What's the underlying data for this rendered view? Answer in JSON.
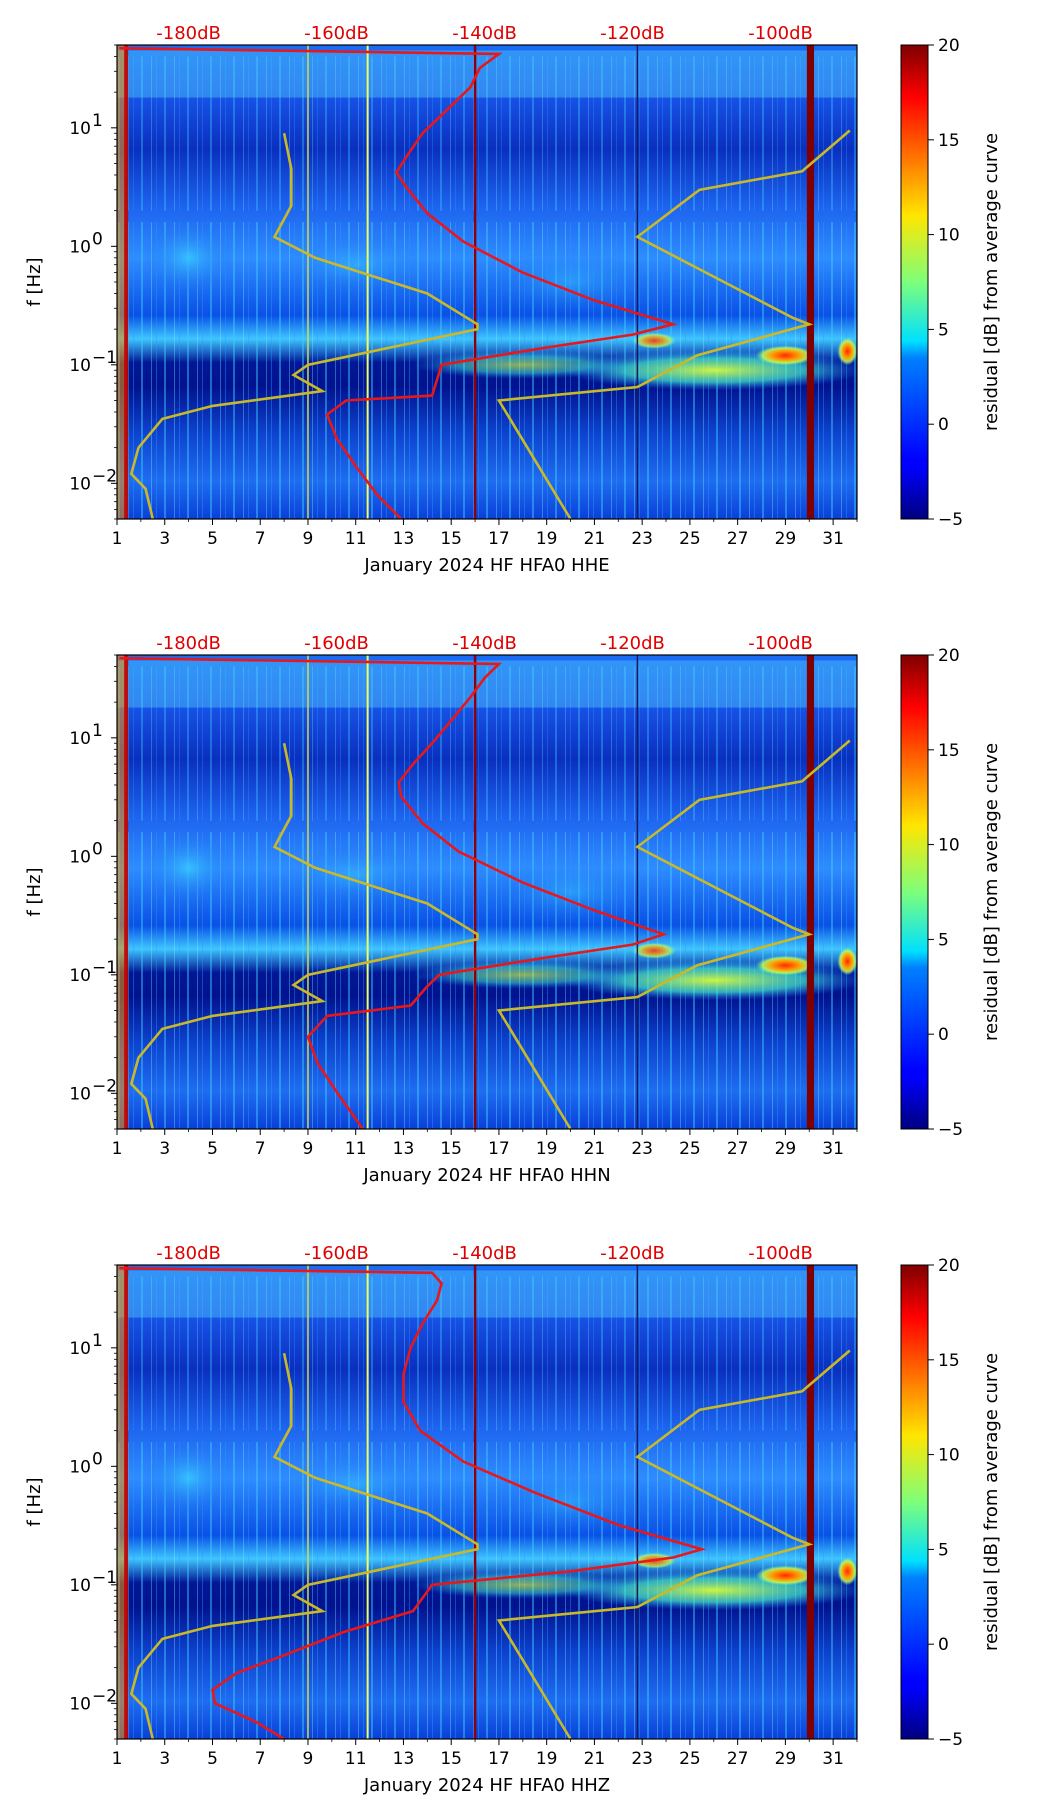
{
  "chart_data": [
    {
      "type": "heatmap",
      "xlabel": "January 2024 HF HFA0  HHE",
      "ylabel": "f [Hz]",
      "x_ticks": [
        "1",
        "3",
        "5",
        "7",
        "9",
        "11",
        "13",
        "15",
        "17",
        "19",
        "21",
        "23",
        "25",
        "27",
        "29",
        "31"
      ],
      "x_range": [
        1,
        32
      ],
      "y_range": [
        0.005,
        50
      ],
      "y_scale": "log",
      "y_ticks": [
        {
          "value": 0.01,
          "base": "10",
          "exp": "−2"
        },
        {
          "value": 0.1,
          "base": "10",
          "exp": "−1"
        },
        {
          "value": 1,
          "base": "10",
          "exp": "0"
        },
        {
          "value": 10,
          "base": "10",
          "exp": "1"
        }
      ],
      "db_labels": [
        "-180dB",
        "-160dB",
        "-140dB",
        "-120dB",
        "-100dB"
      ],
      "db_label_days": [
        4.0,
        10.2,
        16.4,
        22.6,
        28.8
      ],
      "colorbar": {
        "label": "residual [dB] from average curve",
        "min": -5,
        "max": 20,
        "ticks": [
          "−5",
          "0",
          "5",
          "10",
          "15",
          "20"
        ]
      },
      "dark_red_days": [
        29.9,
        30.2
      ],
      "red_curve": [
        {
          "day": 12.9,
          "f": 0.005
        },
        {
          "day": 11.9,
          "f": 0.008
        },
        {
          "day": 11.0,
          "f": 0.014
        },
        {
          "day": 10.2,
          "f": 0.024
        },
        {
          "day": 9.8,
          "f": 0.038
        },
        {
          "day": 10.6,
          "f": 0.05
        },
        {
          "day": 14.2,
          "f": 0.055
        },
        {
          "day": 14.6,
          "f": 0.1
        },
        {
          "day": 19.0,
          "f": 0.14
        },
        {
          "day": 22.6,
          "f": 0.18
        },
        {
          "day": 24.3,
          "f": 0.22
        },
        {
          "day": 21.0,
          "f": 0.35
        },
        {
          "day": 18.0,
          "f": 0.6
        },
        {
          "day": 15.5,
          "f": 1.1
        },
        {
          "day": 14.0,
          "f": 1.9
        },
        {
          "day": 13.1,
          "f": 3.2
        },
        {
          "day": 12.7,
          "f": 4.2
        },
        {
          "day": 13.2,
          "f": 6.0
        },
        {
          "day": 13.8,
          "f": 9.0
        },
        {
          "day": 14.8,
          "f": 14.0
        },
        {
          "day": 15.8,
          "f": 22.0
        },
        {
          "day": 16.2,
          "f": 32.0
        },
        {
          "day": 17.0,
          "f": 42.0
        },
        {
          "day": 1.1,
          "f": 47.0
        }
      ],
      "yellow_curves": [
        [
          {
            "day": 2.5,
            "f": 0.005
          },
          {
            "day": 2.2,
            "f": 0.009
          },
          {
            "day": 1.6,
            "f": 0.012
          },
          {
            "day": 1.9,
            "f": 0.02
          },
          {
            "day": 2.9,
            "f": 0.035
          },
          {
            "day": 5.0,
            "f": 0.045
          },
          {
            "day": 9.6,
            "f": 0.06
          },
          {
            "day": 8.4,
            "f": 0.082
          },
          {
            "day": 9.0,
            "f": 0.1
          },
          {
            "day": 16.1,
            "f": 0.2
          },
          {
            "day": 16.1,
            "f": 0.22
          },
          {
            "day": 14.0,
            "f": 0.4
          },
          {
            "day": 9.3,
            "f": 0.8
          },
          {
            "day": 7.6,
            "f": 1.2
          },
          {
            "day": 8.3,
            "f": 2.2
          },
          {
            "day": 8.3,
            "f": 4.5
          },
          {
            "day": 8.0,
            "f": 9.0
          }
        ],
        [
          {
            "day": 20.0,
            "f": 0.005
          },
          {
            "day": 17.0,
            "f": 0.05
          },
          {
            "day": 22.8,
            "f": 0.065
          },
          {
            "day": 25.3,
            "f": 0.12
          },
          {
            "day": 30.0,
            "f": 0.22
          },
          {
            "day": 29.3,
            "f": 0.25
          },
          {
            "day": 22.8,
            "f": 1.2
          },
          {
            "day": 25.4,
            "f": 3.0
          },
          {
            "day": 29.7,
            "f": 4.3
          },
          {
            "day": 31.7,
            "f": 9.5
          }
        ]
      ]
    },
    {
      "type": "heatmap",
      "xlabel": "January 2024 HF HFA0  HHN",
      "ylabel": "f [Hz]",
      "x_ticks": [
        "1",
        "3",
        "5",
        "7",
        "9",
        "11",
        "13",
        "15",
        "17",
        "19",
        "21",
        "23",
        "25",
        "27",
        "29",
        "31"
      ],
      "x_range": [
        1,
        32
      ],
      "y_range": [
        0.005,
        50
      ],
      "y_scale": "log",
      "y_ticks": [
        {
          "value": 0.01,
          "base": "10",
          "exp": "−2"
        },
        {
          "value": 0.1,
          "base": "10",
          "exp": "−1"
        },
        {
          "value": 1,
          "base": "10",
          "exp": "0"
        },
        {
          "value": 10,
          "base": "10",
          "exp": "1"
        }
      ],
      "db_labels": [
        "-180dB",
        "-160dB",
        "-140dB",
        "-120dB",
        "-100dB"
      ],
      "db_label_days": [
        4.0,
        10.2,
        16.4,
        22.6,
        28.8
      ],
      "colorbar": {
        "label": "residual [dB] from average curve",
        "min": -5,
        "max": 20,
        "ticks": [
          "−5",
          "0",
          "5",
          "10",
          "15",
          "20"
        ]
      },
      "dark_red_days": [
        29.9,
        30.2
      ],
      "red_curve": [
        {
          "day": 11.3,
          "f": 0.005
        },
        {
          "day": 10.4,
          "f": 0.009
        },
        {
          "day": 9.4,
          "f": 0.018
        },
        {
          "day": 9.0,
          "f": 0.03
        },
        {
          "day": 9.8,
          "f": 0.045
        },
        {
          "day": 13.3,
          "f": 0.055
        },
        {
          "day": 14.0,
          "f": 0.08
        },
        {
          "day": 14.5,
          "f": 0.1
        },
        {
          "day": 19.0,
          "f": 0.14
        },
        {
          "day": 22.6,
          "f": 0.18
        },
        {
          "day": 23.9,
          "f": 0.22
        },
        {
          "day": 21.0,
          "f": 0.35
        },
        {
          "day": 18.0,
          "f": 0.6
        },
        {
          "day": 15.3,
          "f": 1.1
        },
        {
          "day": 13.8,
          "f": 1.9
        },
        {
          "day": 12.9,
          "f": 3.2
        },
        {
          "day": 12.8,
          "f": 4.2
        },
        {
          "day": 13.4,
          "f": 6.0
        },
        {
          "day": 14.2,
          "f": 9.0
        },
        {
          "day": 15.0,
          "f": 14.0
        },
        {
          "day": 15.8,
          "f": 22.0
        },
        {
          "day": 16.4,
          "f": 32.0
        },
        {
          "day": 17.0,
          "f": 42.0
        },
        {
          "day": 1.1,
          "f": 47.0
        }
      ],
      "yellow_curves": [
        [
          {
            "day": 2.5,
            "f": 0.005
          },
          {
            "day": 2.2,
            "f": 0.009
          },
          {
            "day": 1.6,
            "f": 0.012
          },
          {
            "day": 1.9,
            "f": 0.02
          },
          {
            "day": 2.9,
            "f": 0.035
          },
          {
            "day": 5.0,
            "f": 0.045
          },
          {
            "day": 9.6,
            "f": 0.06
          },
          {
            "day": 8.4,
            "f": 0.082
          },
          {
            "day": 9.0,
            "f": 0.1
          },
          {
            "day": 16.1,
            "f": 0.2
          },
          {
            "day": 16.1,
            "f": 0.22
          },
          {
            "day": 14.0,
            "f": 0.4
          },
          {
            "day": 9.3,
            "f": 0.8
          },
          {
            "day": 7.6,
            "f": 1.2
          },
          {
            "day": 8.3,
            "f": 2.2
          },
          {
            "day": 8.3,
            "f": 4.5
          },
          {
            "day": 8.0,
            "f": 9.0
          }
        ],
        [
          {
            "day": 20.0,
            "f": 0.005
          },
          {
            "day": 17.0,
            "f": 0.05
          },
          {
            "day": 22.8,
            "f": 0.065
          },
          {
            "day": 25.3,
            "f": 0.12
          },
          {
            "day": 30.0,
            "f": 0.22
          },
          {
            "day": 29.3,
            "f": 0.25
          },
          {
            "day": 22.8,
            "f": 1.2
          },
          {
            "day": 25.4,
            "f": 3.0
          },
          {
            "day": 29.7,
            "f": 4.3
          },
          {
            "day": 31.7,
            "f": 9.5
          }
        ]
      ]
    },
    {
      "type": "heatmap",
      "xlabel": "January 2024 HF HFA0  HHZ",
      "ylabel": "f [Hz]",
      "x_ticks": [
        "1",
        "3",
        "5",
        "7",
        "9",
        "11",
        "13",
        "15",
        "17",
        "19",
        "21",
        "23",
        "25",
        "27",
        "29",
        "31"
      ],
      "x_range": [
        1,
        32
      ],
      "y_range": [
        0.005,
        50
      ],
      "y_scale": "log",
      "y_ticks": [
        {
          "value": 0.01,
          "base": "10",
          "exp": "−2"
        },
        {
          "value": 0.1,
          "base": "10",
          "exp": "−1"
        },
        {
          "value": 1,
          "base": "10",
          "exp": "0"
        },
        {
          "value": 10,
          "base": "10",
          "exp": "1"
        }
      ],
      "db_labels": [
        "-180dB",
        "-160dB",
        "-140dB",
        "-120dB",
        "-100dB"
      ],
      "db_label_days": [
        4.0,
        10.2,
        16.4,
        22.6,
        28.8
      ],
      "colorbar": {
        "label": "residual [dB] from average curve",
        "min": -5,
        "max": 20,
        "ticks": [
          "−5",
          "0",
          "5",
          "10",
          "15",
          "20"
        ]
      },
      "dark_red_days": [
        29.9,
        30.2
      ],
      "red_curve": [
        {
          "day": 8.0,
          "f": 0.005
        },
        {
          "day": 6.8,
          "f": 0.007
        },
        {
          "day": 5.1,
          "f": 0.01
        },
        {
          "day": 5.0,
          "f": 0.013
        },
        {
          "day": 6.0,
          "f": 0.018
        },
        {
          "day": 7.9,
          "f": 0.025
        },
        {
          "day": 10.5,
          "f": 0.04
        },
        {
          "day": 13.4,
          "f": 0.06
        },
        {
          "day": 14.2,
          "f": 0.1
        },
        {
          "day": 20.0,
          "f": 0.13
        },
        {
          "day": 24.3,
          "f": 0.17
        },
        {
          "day": 25.5,
          "f": 0.2
        },
        {
          "day": 22.0,
          "f": 0.32
        },
        {
          "day": 18.5,
          "f": 0.6
        },
        {
          "day": 15.5,
          "f": 1.1
        },
        {
          "day": 13.7,
          "f": 2.0
        },
        {
          "day": 13.0,
          "f": 3.5
        },
        {
          "day": 13.0,
          "f": 6.0
        },
        {
          "day": 13.3,
          "f": 10.0
        },
        {
          "day": 13.8,
          "f": 16.0
        },
        {
          "day": 14.4,
          "f": 25.0
        },
        {
          "day": 14.6,
          "f": 35.0
        },
        {
          "day": 14.2,
          "f": 43.0
        },
        {
          "day": 1.1,
          "f": 47.0
        }
      ],
      "yellow_curves": [
        [
          {
            "day": 2.5,
            "f": 0.005
          },
          {
            "day": 2.2,
            "f": 0.009
          },
          {
            "day": 1.6,
            "f": 0.012
          },
          {
            "day": 1.9,
            "f": 0.02
          },
          {
            "day": 2.9,
            "f": 0.035
          },
          {
            "day": 5.0,
            "f": 0.045
          },
          {
            "day": 9.6,
            "f": 0.06
          },
          {
            "day": 8.4,
            "f": 0.082
          },
          {
            "day": 9.0,
            "f": 0.1
          },
          {
            "day": 16.1,
            "f": 0.2
          },
          {
            "day": 16.1,
            "f": 0.22
          },
          {
            "day": 14.0,
            "f": 0.4
          },
          {
            "day": 9.3,
            "f": 0.8
          },
          {
            "day": 7.6,
            "f": 1.2
          },
          {
            "day": 8.3,
            "f": 2.2
          },
          {
            "day": 8.3,
            "f": 4.5
          },
          {
            "day": 8.0,
            "f": 9.0
          }
        ],
        [
          {
            "day": 20.0,
            "f": 0.005
          },
          {
            "day": 17.0,
            "f": 0.05
          },
          {
            "day": 22.8,
            "f": 0.065
          },
          {
            "day": 25.3,
            "f": 0.12
          },
          {
            "day": 30.0,
            "f": 0.22
          },
          {
            "day": 29.3,
            "f": 0.25
          },
          {
            "day": 22.8,
            "f": 1.2
          },
          {
            "day": 25.4,
            "f": 3.0
          },
          {
            "day": 29.7,
            "f": 4.3
          },
          {
            "day": 31.7,
            "f": 9.5
          }
        ]
      ]
    }
  ]
}
